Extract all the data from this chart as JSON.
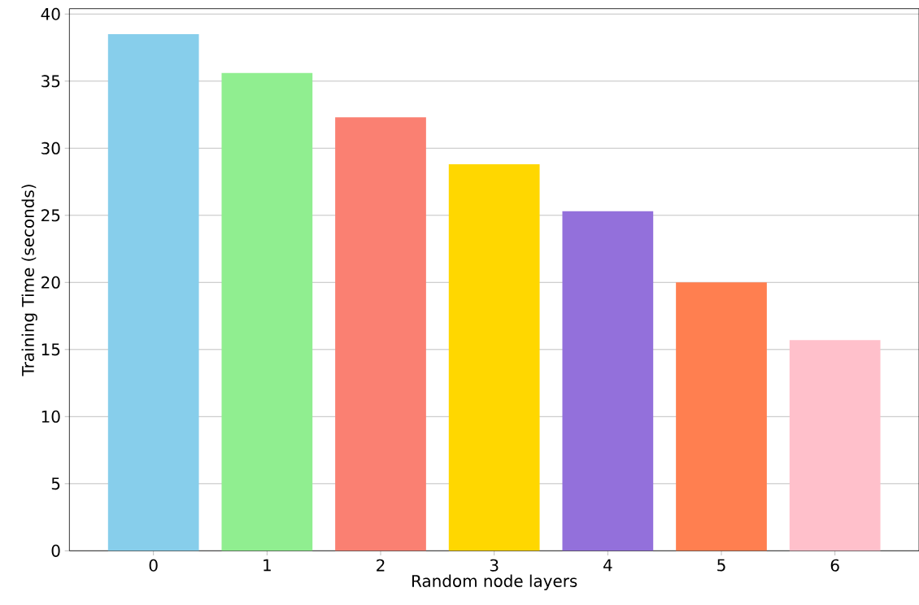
{
  "chart_data": {
    "type": "bar",
    "xlabel": "Random node layers",
    "ylabel": "Training Time (seconds)",
    "categories": [
      "0",
      "1",
      "2",
      "3",
      "4",
      "5",
      "6"
    ],
    "values": [
      38.5,
      35.6,
      32.3,
      28.8,
      25.3,
      20.0,
      15.7
    ],
    "colors": [
      "#87ceeb",
      "#90ee90",
      "#fa8072",
      "#ffd700",
      "#9370db",
      "#ff7f50",
      "#ffc0cb"
    ],
    "ylim": [
      0,
      40.4
    ],
    "yticks": [
      0,
      5,
      10,
      15,
      20,
      25,
      30,
      35,
      40
    ],
    "grid": "y"
  }
}
